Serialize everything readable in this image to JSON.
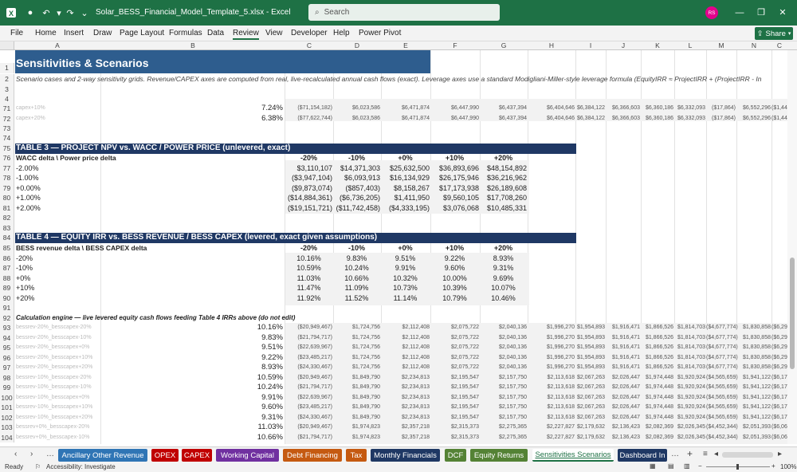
{
  "window": {
    "title": "Solar_BESS_Financial_Model_Template_5.xlsx  -  Excel",
    "search_placeholder": "Search",
    "avatar_initials": "RS"
  },
  "menu": [
    "File",
    "Home",
    "Insert",
    "Draw",
    "Page Layout",
    "Formulas",
    "Data",
    "Review",
    "View",
    "Developer",
    "Help",
    "Power Pivot"
  ],
  "share_label": "Share",
  "columns": [
    "A",
    "B",
    "C",
    "D",
    "E",
    "F",
    "G",
    "H",
    "I",
    "J",
    "K",
    "L",
    "M",
    "N",
    "C"
  ],
  "sheet": {
    "title": "Sensitivities & Scenarios",
    "subtitle": "Scenario cases and 2-way sensitivity grids. Revenue/CAPEX axes are computed from real, live-recalculated annual cash flows (exact). Leverage axes use a standard Modigliani-Miller-style leverage formula (EquityIRR ≈ ProjectIRR + (ProjectIRR - In",
    "row71": {
      "a": "capex+10%",
      "b": "7.24%",
      "c": "($71,154,182)",
      "d": "$6,023,586",
      "e": "$6,471,874",
      "f": "$6,447,990",
      "g": "$6,437,394",
      "h": "$6,404,646",
      "i": "$6,384,122",
      "j": "$6,366,603",
      "k": "$6,360,186",
      "l": "$6,332,093",
      "m": "($17,864)",
      "n": "$6,552,296",
      "o": "($1,44"
    },
    "row72": {
      "a": "capex+20%",
      "b": "6.38%",
      "c": "($77,622,744)",
      "d": "$6,023,586",
      "e": "$6,471,874",
      "f": "$6,447,990",
      "g": "$6,437,394",
      "h": "$6,404,646",
      "i": "$6,384,122",
      "j": "$6,366,603",
      "k": "$6,360,186",
      "l": "$6,332,093",
      "m": "($17,864)",
      "n": "$6,552,296",
      "o": "($1,44"
    },
    "table3": {
      "header": "TABLE 3 — PROJECT NPV vs. WACC / POWER PRICE (unlevered, exact)",
      "axis_label": "WACC delta \\ Power price delta",
      "cols": [
        "-20%",
        "-10%",
        "+0%",
        "+10%",
        "+20%"
      ],
      "rows": [
        {
          "label": "-2.00%",
          "values": [
            "$3,110,107",
            "$14,371,303",
            "$25,632,500",
            "$36,893,696",
            "$48,154,892"
          ]
        },
        {
          "label": "-1.00%",
          "values": [
            "($3,947,104)",
            "$6,093,913",
            "$16,134,929",
            "$26,175,946",
            "$36,216,962"
          ]
        },
        {
          "label": "+0.00%",
          "values": [
            "($9,873,074)",
            "($857,403)",
            "$8,158,267",
            "$17,173,938",
            "$26,189,608"
          ]
        },
        {
          "label": "+1.00%",
          "values": [
            "($14,884,361)",
            "($6,736,205)",
            "$1,411,950",
            "$9,560,105",
            "$17,708,260"
          ]
        },
        {
          "label": "+2.00%",
          "values": [
            "($19,151,721)",
            "($11,742,458)",
            "($4,333,195)",
            "$3,076,068",
            "$10,485,331"
          ]
        }
      ]
    },
    "table4": {
      "header": "TABLE 4 — EQUITY IRR vs. BESS REVENUE / BESS CAPEX (levered, exact given assumptions)",
      "axis_label": "BESS revenue delta \\ BESS CAPEX delta",
      "cols": [
        "-20%",
        "-10%",
        "+0%",
        "+10%",
        "+20%"
      ],
      "rows": [
        {
          "label": "-20%",
          "values": [
            "10.16%",
            "9.83%",
            "9.51%",
            "9.22%",
            "8.93%"
          ]
        },
        {
          "label": "-10%",
          "values": [
            "10.59%",
            "10.24%",
            "9.91%",
            "9.60%",
            "9.31%"
          ]
        },
        {
          "label": "+0%",
          "values": [
            "11.03%",
            "10.66%",
            "10.32%",
            "10.00%",
            "9.69%"
          ]
        },
        {
          "label": "+10%",
          "values": [
            "11.47%",
            "11.09%",
            "10.73%",
            "10.39%",
            "10.07%"
          ]
        },
        {
          "label": "+20%",
          "values": [
            "11.92%",
            "11.52%",
            "11.14%",
            "10.79%",
            "10.46%"
          ]
        }
      ]
    },
    "engine_label": "Calculation engine — live levered equity cash flows feeding Table 4 IRRs above (do not edit)",
    "engine_rows": [
      {
        "num": "93",
        "a": "bessrev-20%_besscapex-20%",
        "b": "10.16%",
        "c": "($20,949,467)",
        "d": "$1,724,756",
        "e": "$2,112,408",
        "f": "$2,075,722",
        "g": "$2,040,136",
        "h": "$1,996,270",
        "i": "$1,954,893",
        "j": "$1,916,471",
        "k": "$1,866,526",
        "l": "$1,814,703",
        "m": "($4,677,774)",
        "n": "$1,830,858",
        "o": "($6,29"
      },
      {
        "num": "94",
        "a": "bessrev-20%_besscapex-10%",
        "b": "9.83%",
        "c": "($21,794,717)",
        "d": "$1,724,756",
        "e": "$2,112,408",
        "f": "$2,075,722",
        "g": "$2,040,136",
        "h": "$1,996,270",
        "i": "$1,954,893",
        "j": "$1,916,471",
        "k": "$1,866,526",
        "l": "$1,814,703",
        "m": "($4,677,774)",
        "n": "$1,830,858",
        "o": "($6,29"
      },
      {
        "num": "95",
        "a": "bessrev-20%_besscapex+0%",
        "b": "9.51%",
        "c": "($22,639,967)",
        "d": "$1,724,756",
        "e": "$2,112,408",
        "f": "$2,075,722",
        "g": "$2,040,136",
        "h": "$1,996,270",
        "i": "$1,954,893",
        "j": "$1,916,471",
        "k": "$1,866,526",
        "l": "$1,814,703",
        "m": "($4,677,774)",
        "n": "$1,830,858",
        "o": "($6,29"
      },
      {
        "num": "96",
        "a": "bessrev-20%_besscapex+10%",
        "b": "9.22%",
        "c": "($23,485,217)",
        "d": "$1,724,756",
        "e": "$2,112,408",
        "f": "$2,075,722",
        "g": "$2,040,136",
        "h": "$1,996,270",
        "i": "$1,954,893",
        "j": "$1,916,471",
        "k": "$1,866,526",
        "l": "$1,814,703",
        "m": "($4,677,774)",
        "n": "$1,830,858",
        "o": "($6,29"
      },
      {
        "num": "97",
        "a": "bessrev-20%_besscapex+20%",
        "b": "8.93%",
        "c": "($24,330,467)",
        "d": "$1,724,756",
        "e": "$2,112,408",
        "f": "$2,075,722",
        "g": "$2,040,136",
        "h": "$1,996,270",
        "i": "$1,954,893",
        "j": "$1,916,471",
        "k": "$1,866,526",
        "l": "$1,814,703",
        "m": "($4,677,774)",
        "n": "$1,830,858",
        "o": "($6,29"
      },
      {
        "num": "98",
        "a": "bessrev-10%_besscapex-20%",
        "b": "10.59%",
        "c": "($20,949,467)",
        "d": "$1,849,790",
        "e": "$2,234,813",
        "f": "$2,195,547",
        "g": "$2,157,750",
        "h": "$2,113,618",
        "i": "$2,067,263",
        "j": "$2,026,447",
        "k": "$1,974,448",
        "l": "$1,920,924",
        "m": "($4,565,659)",
        "n": "$1,941,122",
        "o": "($6,17"
      },
      {
        "num": "99",
        "a": "bessrev-10%_besscapex-10%",
        "b": "10.24%",
        "c": "($21,794,717)",
        "d": "$1,849,790",
        "e": "$2,234,813",
        "f": "$2,195,547",
        "g": "$2,157,750",
        "h": "$2,113,618",
        "i": "$2,067,263",
        "j": "$2,026,447",
        "k": "$1,974,448",
        "l": "$1,920,924",
        "m": "($4,565,659)",
        "n": "$1,941,122",
        "o": "($6,17"
      },
      {
        "num": "100",
        "a": "bessrev-10%_besscapex+0%",
        "b": "9.91%",
        "c": "($22,639,967)",
        "d": "$1,849,790",
        "e": "$2,234,813",
        "f": "$2,195,547",
        "g": "$2,157,750",
        "h": "$2,113,618",
        "i": "$2,067,263",
        "j": "$2,026,447",
        "k": "$1,974,448",
        "l": "$1,920,924",
        "m": "($4,565,659)",
        "n": "$1,941,122",
        "o": "($6,17"
      },
      {
        "num": "101",
        "a": "bessrev-10%_besscapex+10%",
        "b": "9.60%",
        "c": "($23,485,217)",
        "d": "$1,849,790",
        "e": "$2,234,813",
        "f": "$2,195,547",
        "g": "$2,157,750",
        "h": "$2,113,618",
        "i": "$2,067,263",
        "j": "$2,026,447",
        "k": "$1,974,448",
        "l": "$1,920,924",
        "m": "($4,565,659)",
        "n": "$1,941,122",
        "o": "($6,17"
      },
      {
        "num": "102",
        "a": "bessrev-10%_besscapex+20%",
        "b": "9.31%",
        "c": "($24,330,467)",
        "d": "$1,849,790",
        "e": "$2,234,813",
        "f": "$2,195,547",
        "g": "$2,157,750",
        "h": "$2,113,618",
        "i": "$2,067,263",
        "j": "$2,026,447",
        "k": "$1,974,448",
        "l": "$1,920,924",
        "m": "($4,565,659)",
        "n": "$1,941,122",
        "o": "($6,17"
      },
      {
        "num": "103",
        "a": "bessrev+0%_besscapex-20%",
        "b": "11.03%",
        "c": "($20,949,467)",
        "d": "$1,974,823",
        "e": "$2,357,218",
        "f": "$2,315,373",
        "g": "$2,275,365",
        "h": "$2,227,827",
        "i": "$2,179,632",
        "j": "$2,136,423",
        "k": "$2,082,369",
        "l": "$2,026,345",
        "m": "($4,452,344)",
        "n": "$2,051,393",
        "o": "($6,06"
      },
      {
        "num": "104",
        "a": "bessrev+0%_besscapex-10%",
        "b": "10.66%",
        "c": "($21,794,717)",
        "d": "$1,974,823",
        "e": "$2,357,218",
        "f": "$2,315,373",
        "g": "$2,275,365",
        "h": "$2,227,827",
        "i": "$2,179,632",
        "j": "$2,136,423",
        "k": "$2,082,369",
        "l": "$2,026,345",
        "m": "($4,452,344)",
        "n": "$2,051,393",
        "o": "($6,06"
      }
    ]
  },
  "tabs": [
    {
      "label": "Ancillary Other Revenue",
      "color": "#2f75b5"
    },
    {
      "label": "OPEX",
      "color": "#c00000"
    },
    {
      "label": "CAPEX",
      "color": "#c00000"
    },
    {
      "label": "Working Capital",
      "color": "#7030a0"
    },
    {
      "label": "Debt Financing",
      "color": "#c55a11"
    },
    {
      "label": "Tax",
      "color": "#c55a11"
    },
    {
      "label": "Monthly Financials",
      "color": "#1f3864"
    },
    {
      "label": "DCF",
      "color": "#548235"
    },
    {
      "label": "Equity Returns",
      "color": "#548235"
    },
    {
      "label": "Sensitivities Scenarios",
      "color": "#ffffff"
    },
    {
      "label": "Dashboard In",
      "color": "#1f3864"
    }
  ],
  "status": {
    "ready": "Ready",
    "accessibility": "Accessibility: Investigate",
    "zoom": "100%"
  },
  "colors": {
    "excel_green": "#1e7145",
    "title_band": "#2e5d8e",
    "table_header": "#1f3864"
  }
}
